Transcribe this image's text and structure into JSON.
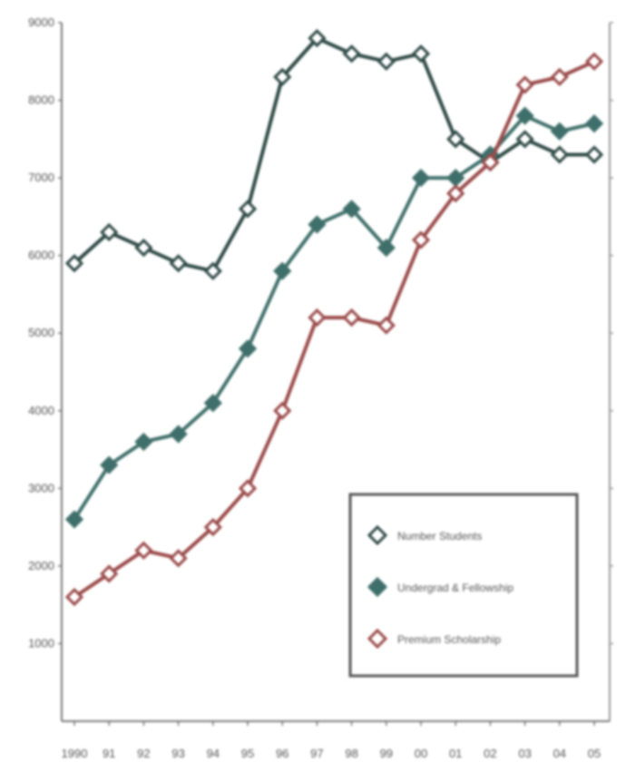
{
  "chart_data": {
    "type": "line",
    "title": "",
    "xlabel": "",
    "ylabel": "",
    "categories": [
      "1990",
      "91",
      "92",
      "93",
      "94",
      "95",
      "96",
      "97",
      "98",
      "99",
      "00",
      "01",
      "02",
      "03",
      "04",
      "05"
    ],
    "y_ticks": [
      "9000",
      "8000",
      "7000",
      "6000",
      "5000",
      "4000",
      "3000",
      "2000",
      "1000"
    ],
    "ylim": [
      0,
      9000
    ],
    "series": [
      {
        "name": "Number Students",
        "color": "#2f4a45",
        "marker": "diamond-open",
        "values": [
          5900,
          6300,
          6100,
          5900,
          5800,
          6600,
          8300,
          8800,
          8600,
          8500,
          8600,
          7500,
          7200,
          7500,
          7300,
          7300
        ]
      },
      {
        "name": "Undergrad & Fellowship",
        "color": "#3f6f6a",
        "marker": "diamond-filled",
        "values": [
          2600,
          3300,
          3600,
          3700,
          4100,
          4800,
          5800,
          6400,
          6600,
          6100,
          7000,
          7000,
          7300,
          7800,
          7600,
          7700
        ]
      },
      {
        "name": "Premium Scholarship",
        "color": "#9b4a4a",
        "marker": "diamond-open",
        "values": [
          1600,
          1900,
          2200,
          2100,
          2500,
          3000,
          4000,
          5200,
          5200,
          5100,
          6200,
          6800,
          7200,
          8200,
          8300,
          8500
        ]
      }
    ],
    "legend_position": "bottom-right",
    "grid": false
  }
}
